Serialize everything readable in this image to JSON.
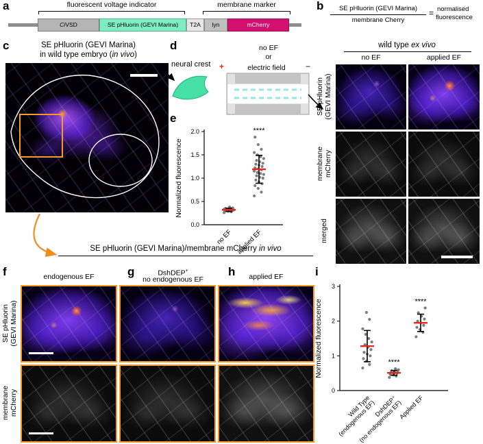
{
  "colors": {
    "accent_orange": "#f59b28",
    "gevi_green": "#7fedc3",
    "mcherry_magenta": "#d30f70",
    "gray_box": "#b5b5b5",
    "mean_red": "#e8251f",
    "point_gray": "#7d7d7d",
    "ef_cyan": "#97e6e0",
    "neural_crest_teal": "#46e0a6"
  },
  "panel_a": {
    "letter": "a",
    "bracket_left_label": "fluorescent voltage indicator",
    "bracket_right_label": "membrane marker",
    "seg_civsd_parts": [
      {
        "t": "Ci",
        "i": true
      },
      {
        "t": "VSD"
      }
    ],
    "seg_se": "SE pHluorin (GEVI Marina)",
    "seg_t2a": "T2A",
    "seg_lyn": "lyn",
    "seg_mcherry": "mCherry"
  },
  "panel_b": {
    "letter": "b",
    "fraction_numerator": "SE pHluorin (GEVI Marina)",
    "fraction_denominator": "membrane Cherry",
    "equals": "=",
    "result_line1": "normalised",
    "result_line2": "fluorescence",
    "grid_title_parts": [
      {
        "t": "wild type "
      },
      {
        "t": "ex vivo",
        "i": true
      }
    ],
    "col_no_ef": "no EF",
    "col_applied_ef": "applied EF",
    "row1_l1": "SE pHluorin",
    "row1_l2": "(GEVI Marina)",
    "row2_l1": "membrane",
    "row2_l2": "mCherry",
    "row3": "merged"
  },
  "panel_c": {
    "letter": "c",
    "title_l1": "SE pHluorin (GEVI Marina)",
    "title_l2_parts": [
      {
        "t": "in wild type embryo ("
      },
      {
        "t": "in vivo",
        "i": true
      },
      {
        "t": ")"
      }
    ]
  },
  "panel_d": {
    "letter": "d",
    "neural_crest": "neural crest",
    "no_ef": "no EF",
    "or": "or",
    "plus": "+",
    "field": "electric field",
    "minus": "−"
  },
  "panel_e": {
    "letter": "e"
  },
  "section_fgh": {
    "title_parts": [
      {
        "t": "SE pHluorin (GEVI Marina)/membrane mCherry "
      },
      {
        "t": "in vivo",
        "i": true
      }
    ],
    "f_letter": "f",
    "f_label": "endogenous EF",
    "g_letter": "g",
    "g_label_l1_parts": [
      {
        "t": "DshDEP"
      },
      {
        "t": "+",
        "sup": true
      }
    ],
    "g_label_l2": "no endogenous EF",
    "h_letter": "h",
    "h_label": "applied EF",
    "row1_l1": "SE pHluorin",
    "row1_l2": "(GEVI Marina)",
    "row2_l1": "membrane",
    "row2_l2": "mCherry"
  },
  "panel_i": {
    "letter": "i"
  },
  "chart_data": [
    {
      "id": "e",
      "type": "scatter",
      "title": "",
      "xlabel": "",
      "ylabel": "Normalized fluorescence",
      "ylim": [
        0,
        2.0
      ],
      "yticks": [
        "0.0",
        "0.5",
        "1.0",
        "1.5",
        "2.0"
      ],
      "grid": false,
      "legend": "none",
      "marker": "gray dots with red mean line and black SD error bars",
      "categories": [
        "no EF",
        "applied EF"
      ],
      "series": [
        {
          "category": "no EF",
          "values": [
            0.26,
            0.28,
            0.29,
            0.3,
            0.3,
            0.3,
            0.31,
            0.31,
            0.31,
            0.32,
            0.32,
            0.32,
            0.32,
            0.33,
            0.33,
            0.33,
            0.34,
            0.34,
            0.35,
            0.35,
            0.36,
            0.38
          ],
          "mean": 0.32,
          "sd": 0.035,
          "sig": ""
        },
        {
          "category": "applied EF",
          "values": [
            0.62,
            0.7,
            0.78,
            0.84,
            0.88,
            0.92,
            0.96,
            1.0,
            1.02,
            1.05,
            1.08,
            1.1,
            1.12,
            1.15,
            1.18,
            1.2,
            1.22,
            1.25,
            1.28,
            1.3,
            1.32,
            1.35,
            1.38,
            1.42,
            1.46,
            1.5,
            1.55,
            1.62,
            1.72,
            1.88
          ],
          "mean": 1.19,
          "sd": 0.3,
          "sig": "****"
        }
      ]
    },
    {
      "id": "i",
      "type": "scatter",
      "title": "",
      "xlabel": "",
      "ylabel": "Normalized fluorescence",
      "ylim": [
        0,
        3
      ],
      "yticks": [
        "0",
        "1",
        "2",
        "3"
      ],
      "grid": false,
      "legend": "none",
      "marker": "gray dots with red mean line and black SD error bars",
      "categories": [
        "Wild Type\n(endogenous EF)",
        "DshDEP⁺\n(no endogenous EF)",
        "Applied EF"
      ],
      "series": [
        {
          "category": "Wild Type\n(endogenous EF)",
          "values": [
            0.65,
            0.75,
            0.85,
            0.92,
            1.0,
            1.05,
            1.1,
            1.18,
            1.25,
            1.32,
            1.4,
            1.5,
            1.62,
            1.78,
            2.05,
            2.25
          ],
          "mean": 1.28,
          "sd": 0.45,
          "sig": ""
        },
        {
          "category": "DshDEP⁺\n(no endogenous EF)",
          "values": [
            0.38,
            0.42,
            0.45,
            0.47,
            0.49,
            0.5,
            0.52,
            0.53,
            0.55,
            0.57,
            0.6,
            0.63
          ],
          "mean": 0.51,
          "sd": 0.07,
          "sig": "****"
        },
        {
          "category": "Applied EF",
          "values": [
            1.55,
            1.68,
            1.76,
            1.82,
            1.88,
            1.95,
            2.0,
            2.06,
            2.14,
            2.24,
            2.38
          ],
          "mean": 1.95,
          "sd": 0.25,
          "sig": "****"
        }
      ]
    }
  ]
}
